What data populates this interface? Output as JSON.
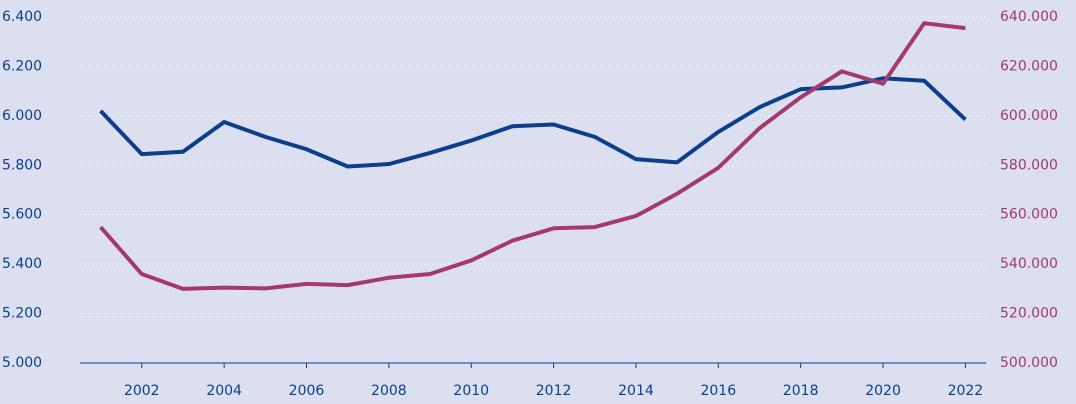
{
  "chart_data": {
    "type": "line",
    "x": [
      2001,
      2002,
      2003,
      2004,
      2005,
      2006,
      2007,
      2008,
      2009,
      2010,
      2011,
      2012,
      2013,
      2014,
      2015,
      2016,
      2017,
      2018,
      2019,
      2020,
      2021,
      2022
    ],
    "series": [
      {
        "color": "#0b3f8a",
        "values": [
          6020,
          5845,
          5855,
          5975,
          5915,
          5865,
          5795,
          5805,
          5850,
          5900,
          5958,
          5965,
          5915,
          5825,
          5812,
          5935,
          6035,
          6108,
          6115,
          6152,
          6142,
          5985
        ]
      },
      {
        "color": "#a33a6e",
        "axis": "y2",
        "values": [
          555000,
          536000,
          530000,
          530500,
          530200,
          532000,
          531500,
          534500,
          536000,
          541500,
          549500,
          554500,
          555000,
          559500,
          568500,
          579000,
          595000,
          607500,
          618000,
          613000,
          637500,
          635500
        ]
      }
    ],
    "xlim": [
      2000.5,
      2022.5
    ],
    "xticks": [
      2002,
      2004,
      2006,
      2008,
      2010,
      2012,
      2014,
      2016,
      2018,
      2020,
      2022
    ],
    "ylim": [
      5000,
      6400
    ],
    "yticks": [
      {
        "value": 5000,
        "label": "5.000"
      },
      {
        "value": 5200,
        "label": "5.200"
      },
      {
        "value": 5400,
        "label": "5.400"
      },
      {
        "value": 5600,
        "label": "5.600"
      },
      {
        "value": 5800,
        "label": "5.800"
      },
      {
        "value": 6000,
        "label": "6.000"
      },
      {
        "value": 6200,
        "label": "6.200"
      },
      {
        "value": 6400,
        "label": "6.400"
      }
    ],
    "y2lim": [
      500000,
      640000
    ],
    "y2ticks": [
      {
        "value": 500000,
        "label": "500.000"
      },
      {
        "value": 520000,
        "label": "520.000"
      },
      {
        "value": 540000,
        "label": "540.000"
      },
      {
        "value": 560000,
        "label": "560.000"
      },
      {
        "value": 580000,
        "label": "580.000"
      },
      {
        "value": 600000,
        "label": "600.000"
      },
      {
        "value": 620000,
        "label": "620.000"
      },
      {
        "value": 640000,
        "label": "640.000"
      }
    ],
    "grid": true
  }
}
